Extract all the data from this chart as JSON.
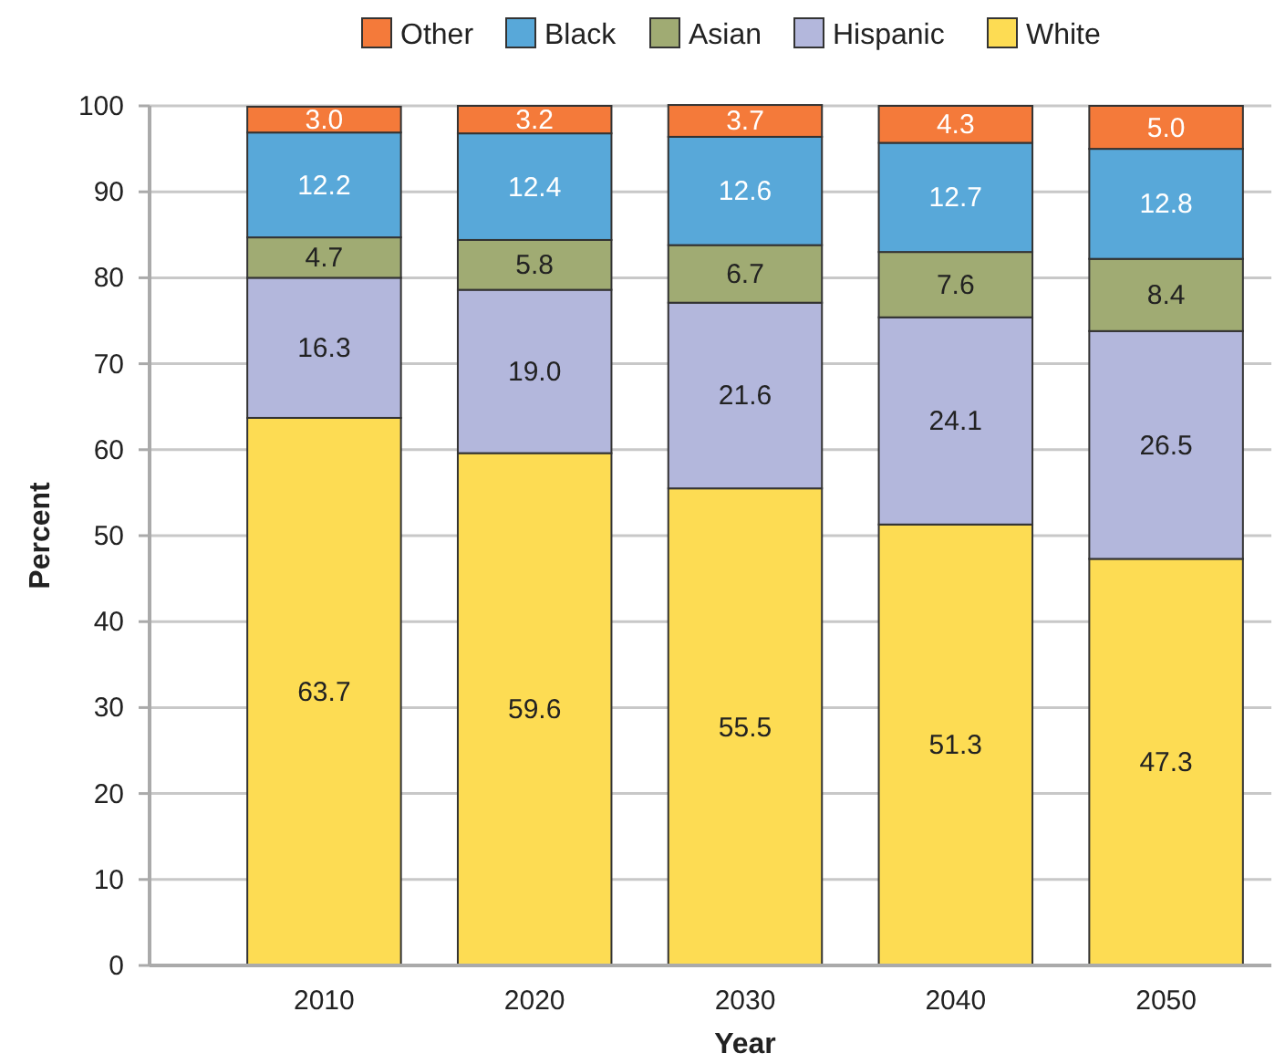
{
  "chart_data": {
    "type": "bar",
    "stacked": true,
    "xlabel": "Year",
    "ylabel": "Percent",
    "categories": [
      "2010",
      "2020",
      "2030",
      "2040",
      "2050"
    ],
    "series": [
      {
        "name": "White",
        "color": "#fddc53",
        "values": [
          63.7,
          59.6,
          55.5,
          51.3,
          47.3
        ],
        "value_labels": [
          "63.7",
          "59.6",
          "55.5",
          "51.3",
          "47.3"
        ]
      },
      {
        "name": "Hispanic",
        "color": "#b3b7dc",
        "values": [
          16.3,
          19.0,
          21.6,
          24.1,
          26.5
        ],
        "value_labels": [
          "16.3",
          "19.0",
          "21.6",
          "24.1",
          "26.5"
        ]
      },
      {
        "name": "Asian",
        "color": "#a0ab73",
        "values": [
          4.7,
          5.8,
          6.7,
          7.6,
          8.4
        ],
        "value_labels": [
          "4.7",
          "5.8",
          "6.7",
          "7.6",
          "8.4"
        ]
      },
      {
        "name": "Black",
        "color": "#58a8d9",
        "values": [
          12.2,
          12.4,
          12.6,
          12.7,
          12.8
        ],
        "value_labels": [
          "12.2",
          "12.4",
          "12.6",
          "12.7",
          "12.8"
        ]
      },
      {
        "name": "Other",
        "color": "#f47a3a",
        "values": [
          3.0,
          3.2,
          3.7,
          4.3,
          5.0
        ],
        "value_labels": [
          "3.0",
          "3.2",
          "3.7",
          "4.3",
          "5.0"
        ]
      }
    ],
    "ylim": [
      0,
      100
    ],
    "yticks": [
      0,
      10,
      20,
      30,
      40,
      50,
      60,
      70,
      80,
      90,
      100
    ],
    "grid": "y",
    "legend": "top"
  }
}
